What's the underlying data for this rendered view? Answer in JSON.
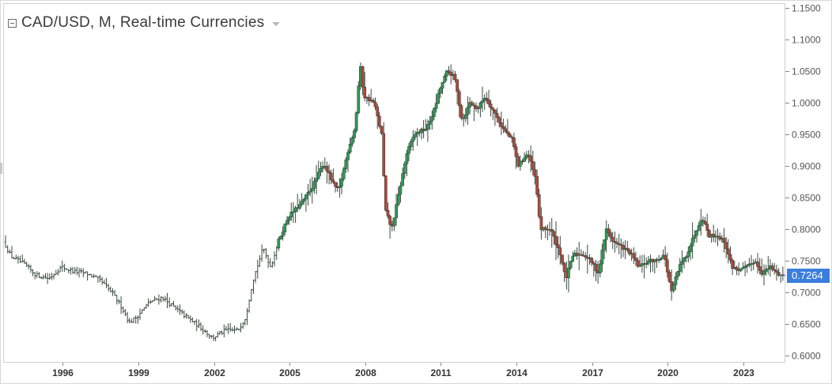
{
  "header": {
    "title": "CAD/USD, M, Real-time Currencies"
  },
  "last_price": "0.7264",
  "colors": {
    "up": "#2a8a4a",
    "down": "#a33a2e",
    "up_fill": "#2e9a56",
    "down_fill": "#b5453a",
    "wick": "#3a4a40",
    "last_price_bg": "#3b7ddd"
  },
  "chart_data": {
    "type": "candlestick",
    "title": "CAD/USD, M, Real-time Currencies",
    "x_ticks": [
      "1996",
      "1999",
      "2002",
      "2005",
      "2008",
      "2011",
      "2014",
      "2017",
      "2020",
      "2023"
    ],
    "x_range": [
      1993.7,
      2024.6
    ],
    "y_ticks": [
      "1.1500",
      "1.1000",
      "1.0500",
      "1.0000",
      "0.9500",
      "0.9000",
      "0.8500",
      "0.8000",
      "0.7500",
      "0.7000",
      "0.6500",
      "0.6000"
    ],
    "ylim": [
      0.59,
      1.155
    ],
    "last_value": 0.7264,
    "grid": false,
    "close_path": [
      [
        1993.7,
        0.78
      ],
      [
        1994.0,
        0.757
      ],
      [
        1994.5,
        0.745
      ],
      [
        1995.0,
        0.727
      ],
      [
        1995.5,
        0.722
      ],
      [
        1996.0,
        0.74
      ],
      [
        1996.5,
        0.733
      ],
      [
        1997.0,
        0.73
      ],
      [
        1997.5,
        0.72
      ],
      [
        1998.0,
        0.7
      ],
      [
        1998.4,
        0.676
      ],
      [
        1998.7,
        0.652
      ],
      [
        1999.0,
        0.662
      ],
      [
        1999.5,
        0.685
      ],
      [
        2000.0,
        0.692
      ],
      [
        2000.5,
        0.675
      ],
      [
        2001.0,
        0.66
      ],
      [
        2001.5,
        0.645
      ],
      [
        2002.0,
        0.628
      ],
      [
        2002.5,
        0.64
      ],
      [
        2003.0,
        0.64
      ],
      [
        2003.3,
        0.66
      ],
      [
        2003.6,
        0.72
      ],
      [
        2004.0,
        0.77
      ],
      [
        2004.3,
        0.74
      ],
      [
        2004.6,
        0.78
      ],
      [
        2005.0,
        0.82
      ],
      [
        2005.5,
        0.84
      ],
      [
        2006.0,
        0.87
      ],
      [
        2006.4,
        0.905
      ],
      [
        2006.8,
        0.87
      ],
      [
        2007.0,
        0.86
      ],
      [
        2007.4,
        0.93
      ],
      [
        2007.65,
        0.96
      ],
      [
        2007.85,
        1.06
      ],
      [
        2008.0,
        1.01
      ],
      [
        2008.4,
        1.0
      ],
      [
        2008.7,
        0.95
      ],
      [
        2008.85,
        0.83
      ],
      [
        2009.1,
        0.8
      ],
      [
        2009.4,
        0.86
      ],
      [
        2009.7,
        0.92
      ],
      [
        2010.0,
        0.95
      ],
      [
        2010.5,
        0.96
      ],
      [
        2010.8,
        0.99
      ],
      [
        2011.0,
        1.02
      ],
      [
        2011.3,
        1.05
      ],
      [
        2011.6,
        1.04
      ],
      [
        2011.9,
        0.97
      ],
      [
        2012.2,
        1.0
      ],
      [
        2012.5,
        0.99
      ],
      [
        2012.8,
        1.01
      ],
      [
        2013.1,
        0.99
      ],
      [
        2013.5,
        0.96
      ],
      [
        2013.9,
        0.94
      ],
      [
        2014.1,
        0.9
      ],
      [
        2014.5,
        0.92
      ],
      [
        2014.8,
        0.88
      ],
      [
        2015.0,
        0.8
      ],
      [
        2015.4,
        0.8
      ],
      [
        2015.8,
        0.76
      ],
      [
        2016.0,
        0.72
      ],
      [
        2016.3,
        0.76
      ],
      [
        2016.7,
        0.76
      ],
      [
        2017.0,
        0.75
      ],
      [
        2017.3,
        0.73
      ],
      [
        2017.6,
        0.8
      ],
      [
        2017.9,
        0.78
      ],
      [
        2018.3,
        0.77
      ],
      [
        2018.6,
        0.76
      ],
      [
        2018.9,
        0.74
      ],
      [
        2019.3,
        0.75
      ],
      [
        2019.6,
        0.75
      ],
      [
        2019.9,
        0.76
      ],
      [
        2020.2,
        0.7
      ],
      [
        2020.5,
        0.74
      ],
      [
        2020.8,
        0.76
      ],
      [
        2021.1,
        0.79
      ],
      [
        2021.4,
        0.82
      ],
      [
        2021.7,
        0.79
      ],
      [
        2022.0,
        0.79
      ],
      [
        2022.3,
        0.78
      ],
      [
        2022.6,
        0.74
      ],
      [
        2022.9,
        0.735
      ],
      [
        2023.2,
        0.74
      ],
      [
        2023.5,
        0.75
      ],
      [
        2023.8,
        0.73
      ],
      [
        2024.1,
        0.74
      ],
      [
        2024.4,
        0.73
      ],
      [
        2024.6,
        0.7264
      ]
    ]
  }
}
